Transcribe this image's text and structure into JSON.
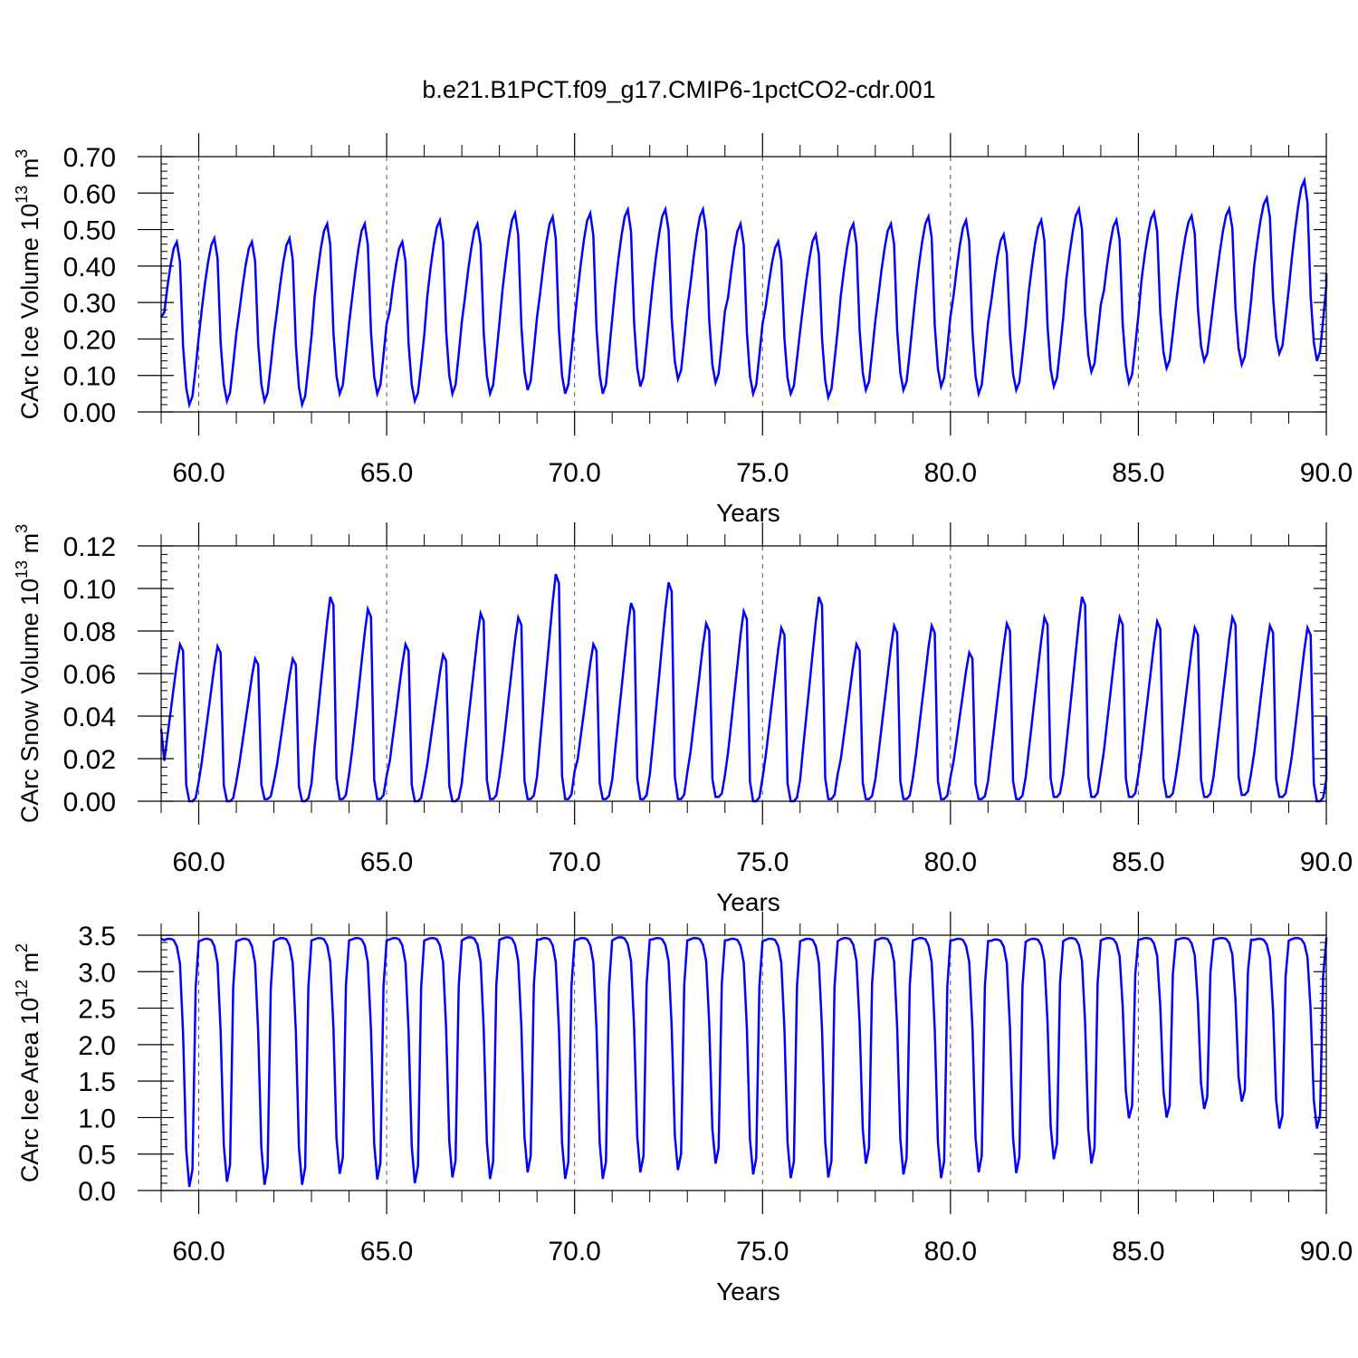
{
  "title": "b.e21.B1PCT.f09_g17.CMIP6-1pctCO2-cdr.001",
  "colors": {
    "series": "#0000ff",
    "axis": "#000000",
    "grid": "#555555"
  },
  "chart_data": [
    {
      "type": "line",
      "ylabel": {
        "main": "CArc Ice Volume 10",
        "exp": "13",
        "unit": " m",
        "unit_exp": "3"
      },
      "xlabel": "Years",
      "xlim": [
        59,
        90
      ],
      "ylim": [
        0,
        0.7
      ],
      "yticks": [
        "0.00",
        "0.10",
        "0.20",
        "0.30",
        "0.40",
        "0.50",
        "0.60",
        "0.70"
      ],
      "xticks": [
        "60.0",
        "65.0",
        "70.0",
        "75.0",
        "80.0",
        "85.0",
        "90.0"
      ],
      "grid": "vertical dashed at major x ticks",
      "x_start": 59.0,
      "x_step": 0.0833333,
      "annual_peak": [
        0.48,
        0.49,
        0.48,
        0.49,
        0.53,
        0.53,
        0.48,
        0.54,
        0.53,
        0.56,
        0.55,
        0.56,
        0.57,
        0.57,
        0.57,
        0.53,
        0.48,
        0.5,
        0.53,
        0.53,
        0.55,
        0.54,
        0.5,
        0.54,
        0.57,
        0.54,
        0.56,
        0.55,
        0.57,
        0.6,
        0.65
      ],
      "annual_min": [
        0.02,
        0.03,
        0.03,
        0.02,
        0.05,
        0.05,
        0.03,
        0.05,
        0.05,
        0.06,
        0.05,
        0.05,
        0.07,
        0.09,
        0.08,
        0.05,
        0.05,
        0.04,
        0.06,
        0.06,
        0.07,
        0.05,
        0.06,
        0.07,
        0.11,
        0.08,
        0.12,
        0.14,
        0.13,
        0.16,
        0.14
      ],
      "start_value": 0.26,
      "end_value": 0.38
    },
    {
      "type": "line",
      "ylabel": {
        "main": "CArc Snow Volume 10",
        "exp": "13",
        "unit": " m",
        "unit_exp": "3"
      },
      "xlabel": "Years",
      "xlim": [
        59,
        90
      ],
      "ylim": [
        0,
        0.12
      ],
      "yticks": [
        "0.00",
        "0.02",
        "0.04",
        "0.06",
        "0.08",
        "0.10",
        "0.12"
      ],
      "xticks": [
        "60.0",
        "65.0",
        "70.0",
        "75.0",
        "80.0",
        "85.0",
        "90.0"
      ],
      "grid": "vertical dashed at major x ticks",
      "x_start": 59.0,
      "x_step": 0.0833333,
      "annual_peak": [
        0.076,
        0.075,
        0.069,
        0.069,
        0.099,
        0.093,
        0.076,
        0.071,
        0.091,
        0.089,
        0.11,
        0.076,
        0.096,
        0.106,
        0.086,
        0.092,
        0.084,
        0.099,
        0.076,
        0.085,
        0.085,
        0.072,
        0.086,
        0.089,
        0.099,
        0.089,
        0.087,
        0.084,
        0.089,
        0.085,
        0.084
      ],
      "annual_min": [
        0.0,
        0.0,
        0.001,
        0.0,
        0.001,
        0.001,
        0.0,
        0.0,
        0.001,
        0.001,
        0.001,
        0.001,
        0.001,
        0.001,
        0.002,
        0.0,
        0.0,
        0.001,
        0.001,
        0.001,
        0.001,
        0.001,
        0.001,
        0.002,
        0.002,
        0.002,
        0.002,
        0.002,
        0.003,
        0.002,
        0.0
      ],
      "start_value": 0.034,
      "end_value": 0.04
    },
    {
      "type": "line",
      "ylabel": {
        "main": "CArc Ice Area 10",
        "exp": "12",
        "unit": " m",
        "unit_exp": "2"
      },
      "xlabel": "Years",
      "xlim": [
        59,
        90
      ],
      "ylim": [
        0,
        3.5
      ],
      "yticks": [
        "0.0",
        "0.5",
        "1.0",
        "1.5",
        "2.0",
        "2.5",
        "3.0",
        "3.5"
      ],
      "xticks": [
        "60.0",
        "65.0",
        "70.0",
        "75.0",
        "80.0",
        "85.0",
        "90.0"
      ],
      "grid": "vertical dashed at major x ticks",
      "x_start": 59.0,
      "x_step": 0.0833333,
      "annual_peak": [
        3.45,
        3.45,
        3.45,
        3.46,
        3.46,
        3.46,
        3.46,
        3.46,
        3.47,
        3.47,
        3.46,
        3.46,
        3.47,
        3.46,
        3.46,
        3.45,
        3.45,
        3.45,
        3.46,
        3.46,
        3.46,
        3.45,
        3.44,
        3.45,
        3.46,
        3.46,
        3.46,
        3.46,
        3.46,
        3.45,
        3.46
      ],
      "annual_min": [
        0.05,
        0.12,
        0.08,
        0.08,
        0.23,
        0.15,
        0.1,
        0.18,
        0.16,
        0.25,
        0.16,
        0.16,
        0.25,
        0.28,
        0.37,
        0.22,
        0.17,
        0.18,
        0.37,
        0.22,
        0.17,
        0.25,
        0.24,
        0.43,
        0.37,
        0.99,
        1.0,
        1.12,
        1.22,
        0.85,
        0.85
      ],
      "start_value": 3.45,
      "end_value": 3.47
    }
  ]
}
